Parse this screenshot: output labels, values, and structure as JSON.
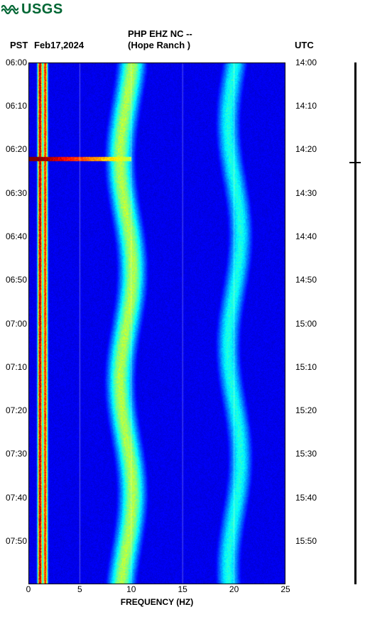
{
  "logo_text": "USGS",
  "header": {
    "pst_label": "PST",
    "date": "Feb17,2024",
    "line1": "PHP EHZ NC --",
    "line2": "(Hope Ranch )",
    "utc_label": "UTC"
  },
  "spectrogram": {
    "type": "heatmap",
    "palette_name": "jet",
    "palette": [
      "#00007f",
      "#0000ff",
      "#007fff",
      "#00ffff",
      "#7fff7f",
      "#ffff00",
      "#ff7f00",
      "#ff0000",
      "#7f0000"
    ],
    "background_color": "#00007f",
    "x_domain_hz": [
      0,
      25
    ],
    "y_domain_pst_decimal_hours": [
      6.0,
      8.0
    ],
    "y_domain_utc_decimal_hours": [
      14.0,
      16.0
    ],
    "event_at_decimal_hour": 6.37,
    "event_strip_hz_extent": [
      0,
      10
    ],
    "event_color": "#ff0000",
    "vertical_power_bands_hz": [
      1.1,
      1.6,
      9.5,
      20.0
    ],
    "gridline_hz": [
      0,
      5,
      10,
      15,
      20,
      25
    ],
    "gridline_color": "#ffffff",
    "gridline_opacity": 0.35,
    "noise_base_intensity": 0.08,
    "band_intensity": [
      0.95,
      0.85,
      0.55,
      0.4
    ],
    "band_width_hz": [
      0.35,
      0.35,
      1.8,
      1.6
    ]
  },
  "x_axis": {
    "label": "FREQUENCY (HZ)",
    "ticks": [
      0,
      5,
      10,
      15,
      20,
      25
    ],
    "fontsize": 12
  },
  "y_axis_left": {
    "ticks": [
      "06:00",
      "06:10",
      "06:20",
      "06:30",
      "06:40",
      "06:50",
      "07:00",
      "07:10",
      "07:20",
      "07:30",
      "07:40",
      "07:50"
    ],
    "tick_decimal_hours": [
      6.0,
      6.1667,
      6.3333,
      6.5,
      6.6667,
      6.8333,
      7.0,
      7.1667,
      7.3333,
      7.5,
      7.6667,
      7.8333
    ],
    "fontsize": 12
  },
  "y_axis_right": {
    "ticks": [
      "14:00",
      "14:10",
      "14:20",
      "14:30",
      "14:40",
      "14:50",
      "15:00",
      "15:10",
      "15:20",
      "15:30",
      "15:40",
      "15:50"
    ],
    "tick_decimal_hours": [
      14.0,
      14.1667,
      14.3333,
      14.5,
      14.6667,
      14.8333,
      15.0,
      15.1667,
      15.3333,
      15.5,
      15.6667,
      15.8333
    ],
    "fontsize": 12
  },
  "amplitude_bar": {
    "color": "#000000",
    "marker_fraction_from_top": 0.19
  }
}
